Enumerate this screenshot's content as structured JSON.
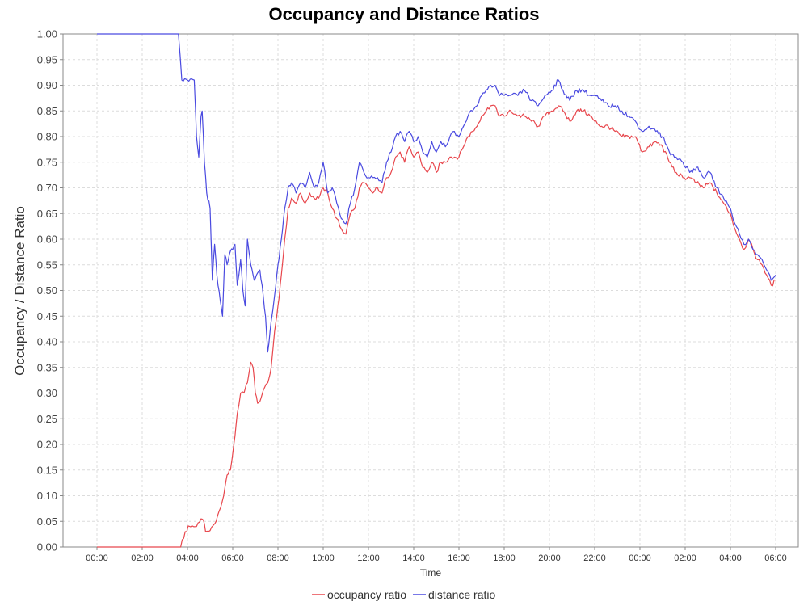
{
  "chart_data": {
    "type": "line",
    "title": "Occupancy and Distance Ratios",
    "xlabel": "Time",
    "ylabel": "Occupancy / Distance Ratio",
    "ylim": [
      0,
      1
    ],
    "y_ticks": [
      "0.00",
      "0.05",
      "0.10",
      "0.15",
      "0.20",
      "0.25",
      "0.30",
      "0.35",
      "0.40",
      "0.45",
      "0.50",
      "0.55",
      "0.60",
      "0.65",
      "0.70",
      "0.75",
      "0.80",
      "0.85",
      "0.90",
      "0.95",
      "1.00"
    ],
    "x_unit": "hours elapsed since the first 00:00 tick",
    "xlim": [
      -1.5,
      31.0
    ],
    "x_ticks": [
      {
        "x": 0,
        "label": "00:00"
      },
      {
        "x": 2,
        "label": "02:00"
      },
      {
        "x": 4,
        "label": "04:00"
      },
      {
        "x": 6,
        "label": "06:00"
      },
      {
        "x": 8,
        "label": "08:00"
      },
      {
        "x": 10,
        "label": "10:00"
      },
      {
        "x": 12,
        "label": "12:00"
      },
      {
        "x": 14,
        "label": "14:00"
      },
      {
        "x": 16,
        "label": "16:00"
      },
      {
        "x": 18,
        "label": "18:00"
      },
      {
        "x": 20,
        "label": "20:00"
      },
      {
        "x": 22,
        "label": "22:00"
      },
      {
        "x": 24,
        "label": "00:00"
      },
      {
        "x": 26,
        "label": "02:00"
      },
      {
        "x": 28,
        "label": "04:00"
      },
      {
        "x": 30,
        "label": "06:00"
      }
    ],
    "grid": true,
    "legend_position": "bottom-center",
    "series": [
      {
        "name": "occupancy ratio",
        "color": "#e8474d",
        "points": [
          [
            0,
            0
          ],
          [
            3.7,
            0
          ],
          [
            3.9,
            0.03
          ],
          [
            4.1,
            0.04
          ],
          [
            4.4,
            0.04
          ],
          [
            4.6,
            0.055
          ],
          [
            4.75,
            0.045
          ],
          [
            4.8,
            0.03
          ],
          [
            5.0,
            0.032
          ],
          [
            5.2,
            0.045
          ],
          [
            5.4,
            0.07
          ],
          [
            5.6,
            0.1
          ],
          [
            5.75,
            0.14
          ],
          [
            5.9,
            0.15
          ],
          [
            6.05,
            0.2
          ],
          [
            6.2,
            0.26
          ],
          [
            6.35,
            0.3
          ],
          [
            6.5,
            0.3
          ],
          [
            6.65,
            0.32
          ],
          [
            6.8,
            0.36
          ],
          [
            6.9,
            0.35
          ],
          [
            7.0,
            0.3
          ],
          [
            7.1,
            0.28
          ],
          [
            7.25,
            0.29
          ],
          [
            7.4,
            0.31
          ],
          [
            7.55,
            0.32
          ],
          [
            7.7,
            0.35
          ],
          [
            7.85,
            0.42
          ],
          [
            8.0,
            0.47
          ],
          [
            8.15,
            0.53
          ],
          [
            8.3,
            0.6
          ],
          [
            8.45,
            0.66
          ],
          [
            8.6,
            0.68
          ],
          [
            8.8,
            0.67
          ],
          [
            9.0,
            0.69
          ],
          [
            9.2,
            0.67
          ],
          [
            9.4,
            0.69
          ],
          [
            9.6,
            0.68
          ],
          [
            9.8,
            0.68
          ],
          [
            10.0,
            0.7
          ],
          [
            10.2,
            0.69
          ],
          [
            10.4,
            0.66
          ],
          [
            10.6,
            0.64
          ],
          [
            10.8,
            0.62
          ],
          [
            11.0,
            0.61
          ],
          [
            11.2,
            0.65
          ],
          [
            11.4,
            0.66
          ],
          [
            11.6,
            0.7
          ],
          [
            11.8,
            0.71
          ],
          [
            12.0,
            0.7
          ],
          [
            12.2,
            0.69
          ],
          [
            12.4,
            0.7
          ],
          [
            12.6,
            0.69
          ],
          [
            12.8,
            0.72
          ],
          [
            13.0,
            0.73
          ],
          [
            13.2,
            0.76
          ],
          [
            13.4,
            0.77
          ],
          [
            13.6,
            0.75
          ],
          [
            13.8,
            0.78
          ],
          [
            14.0,
            0.76
          ],
          [
            14.2,
            0.77
          ],
          [
            14.4,
            0.74
          ],
          [
            14.6,
            0.73
          ],
          [
            14.8,
            0.75
          ],
          [
            15.0,
            0.73
          ],
          [
            15.2,
            0.75
          ],
          [
            15.4,
            0.75
          ],
          [
            15.6,
            0.76
          ],
          [
            15.8,
            0.76
          ],
          [
            16.0,
            0.76
          ],
          [
            16.2,
            0.78
          ],
          [
            16.4,
            0.8
          ],
          [
            16.6,
            0.81
          ],
          [
            16.8,
            0.82
          ],
          [
            17.0,
            0.84
          ],
          [
            17.2,
            0.85
          ],
          [
            17.4,
            0.86
          ],
          [
            17.6,
            0.86
          ],
          [
            17.8,
            0.84
          ],
          [
            18.0,
            0.84
          ],
          [
            18.3,
            0.85
          ],
          [
            18.6,
            0.84
          ],
          [
            18.9,
            0.84
          ],
          [
            19.2,
            0.83
          ],
          [
            19.5,
            0.82
          ],
          [
            19.8,
            0.84
          ],
          [
            20.1,
            0.85
          ],
          [
            20.4,
            0.86
          ],
          [
            20.6,
            0.85
          ],
          [
            20.9,
            0.83
          ],
          [
            21.2,
            0.85
          ],
          [
            21.5,
            0.85
          ],
          [
            21.8,
            0.84
          ],
          [
            22.0,
            0.83
          ],
          [
            22.3,
            0.82
          ],
          [
            22.6,
            0.82
          ],
          [
            22.9,
            0.81
          ],
          [
            23.2,
            0.8
          ],
          [
            23.5,
            0.8
          ],
          [
            23.8,
            0.8
          ],
          [
            24.1,
            0.77
          ],
          [
            24.4,
            0.78
          ],
          [
            24.7,
            0.79
          ],
          [
            25.0,
            0.78
          ],
          [
            25.3,
            0.75
          ],
          [
            25.6,
            0.73
          ],
          [
            25.9,
            0.72
          ],
          [
            26.2,
            0.72
          ],
          [
            26.5,
            0.71
          ],
          [
            26.8,
            0.7
          ],
          [
            27.1,
            0.71
          ],
          [
            27.4,
            0.69
          ],
          [
            27.7,
            0.67
          ],
          [
            28.0,
            0.65
          ],
          [
            28.2,
            0.62
          ],
          [
            28.4,
            0.6
          ],
          [
            28.6,
            0.58
          ],
          [
            28.8,
            0.6
          ],
          [
            29.0,
            0.58
          ],
          [
            29.2,
            0.56
          ],
          [
            29.4,
            0.55
          ],
          [
            29.6,
            0.53
          ],
          [
            29.8,
            0.51
          ],
          [
            30.0,
            0.52
          ]
        ]
      },
      {
        "name": "distance ratio",
        "color": "#4a4ae0",
        "points": [
          [
            0,
            1.0
          ],
          [
            3.6,
            1.0
          ],
          [
            3.75,
            0.91
          ],
          [
            4.0,
            0.91
          ],
          [
            4.3,
            0.91
          ],
          [
            4.4,
            0.8
          ],
          [
            4.5,
            0.76
          ],
          [
            4.6,
            0.84
          ],
          [
            4.65,
            0.85
          ],
          [
            4.75,
            0.75
          ],
          [
            4.85,
            0.69
          ],
          [
            5.0,
            0.66
          ],
          [
            5.1,
            0.52
          ],
          [
            5.2,
            0.59
          ],
          [
            5.3,
            0.53
          ],
          [
            5.45,
            0.48
          ],
          [
            5.55,
            0.45
          ],
          [
            5.65,
            0.57
          ],
          [
            5.75,
            0.55
          ],
          [
            5.85,
            0.57
          ],
          [
            6.0,
            0.58
          ],
          [
            6.1,
            0.59
          ],
          [
            6.2,
            0.51
          ],
          [
            6.35,
            0.56
          ],
          [
            6.45,
            0.5
          ],
          [
            6.55,
            0.47
          ],
          [
            6.65,
            0.6
          ],
          [
            6.8,
            0.55
          ],
          [
            6.95,
            0.52
          ],
          [
            7.05,
            0.53
          ],
          [
            7.2,
            0.54
          ],
          [
            7.3,
            0.51
          ],
          [
            7.45,
            0.45
          ],
          [
            7.55,
            0.38
          ],
          [
            7.7,
            0.44
          ],
          [
            7.85,
            0.49
          ],
          [
            8.0,
            0.55
          ],
          [
            8.15,
            0.6
          ],
          [
            8.3,
            0.66
          ],
          [
            8.45,
            0.7
          ],
          [
            8.6,
            0.71
          ],
          [
            8.8,
            0.69
          ],
          [
            9.0,
            0.71
          ],
          [
            9.2,
            0.7
          ],
          [
            9.4,
            0.73
          ],
          [
            9.6,
            0.7
          ],
          [
            9.8,
            0.71
          ],
          [
            10.0,
            0.75
          ],
          [
            10.2,
            0.69
          ],
          [
            10.4,
            0.7
          ],
          [
            10.6,
            0.67
          ],
          [
            10.8,
            0.64
          ],
          [
            11.0,
            0.63
          ],
          [
            11.2,
            0.67
          ],
          [
            11.4,
            0.7
          ],
          [
            11.6,
            0.75
          ],
          [
            11.8,
            0.73
          ],
          [
            12.0,
            0.72
          ],
          [
            12.2,
            0.72
          ],
          [
            12.4,
            0.72
          ],
          [
            12.6,
            0.71
          ],
          [
            12.8,
            0.75
          ],
          [
            13.0,
            0.77
          ],
          [
            13.2,
            0.8
          ],
          [
            13.4,
            0.81
          ],
          [
            13.6,
            0.79
          ],
          [
            13.8,
            0.81
          ],
          [
            14.0,
            0.79
          ],
          [
            14.2,
            0.8
          ],
          [
            14.4,
            0.77
          ],
          [
            14.6,
            0.76
          ],
          [
            14.8,
            0.79
          ],
          [
            15.0,
            0.77
          ],
          [
            15.2,
            0.79
          ],
          [
            15.4,
            0.78
          ],
          [
            15.6,
            0.8
          ],
          [
            15.8,
            0.81
          ],
          [
            16.0,
            0.8
          ],
          [
            16.2,
            0.82
          ],
          [
            16.4,
            0.84
          ],
          [
            16.6,
            0.85
          ],
          [
            16.8,
            0.86
          ],
          [
            17.0,
            0.88
          ],
          [
            17.2,
            0.89
          ],
          [
            17.4,
            0.9
          ],
          [
            17.6,
            0.9
          ],
          [
            17.8,
            0.88
          ],
          [
            18.0,
            0.88
          ],
          [
            18.3,
            0.88
          ],
          [
            18.6,
            0.88
          ],
          [
            18.9,
            0.89
          ],
          [
            19.2,
            0.87
          ],
          [
            19.5,
            0.86
          ],
          [
            19.8,
            0.88
          ],
          [
            20.1,
            0.89
          ],
          [
            20.4,
            0.91
          ],
          [
            20.6,
            0.89
          ],
          [
            20.9,
            0.87
          ],
          [
            21.2,
            0.89
          ],
          [
            21.5,
            0.89
          ],
          [
            21.8,
            0.88
          ],
          [
            22.0,
            0.88
          ],
          [
            22.3,
            0.87
          ],
          [
            22.6,
            0.86
          ],
          [
            22.9,
            0.86
          ],
          [
            23.2,
            0.85
          ],
          [
            23.5,
            0.84
          ],
          [
            23.8,
            0.83
          ],
          [
            24.1,
            0.81
          ],
          [
            24.4,
            0.82
          ],
          [
            24.7,
            0.81
          ],
          [
            25.0,
            0.8
          ],
          [
            25.3,
            0.77
          ],
          [
            25.6,
            0.76
          ],
          [
            25.9,
            0.75
          ],
          [
            26.2,
            0.73
          ],
          [
            26.5,
            0.74
          ],
          [
            26.8,
            0.72
          ],
          [
            27.1,
            0.73
          ],
          [
            27.4,
            0.7
          ],
          [
            27.7,
            0.68
          ],
          [
            28.0,
            0.66
          ],
          [
            28.2,
            0.63
          ],
          [
            28.4,
            0.61
          ],
          [
            28.6,
            0.59
          ],
          [
            28.8,
            0.6
          ],
          [
            29.0,
            0.58
          ],
          [
            29.2,
            0.57
          ],
          [
            29.4,
            0.56
          ],
          [
            29.6,
            0.54
          ],
          [
            29.8,
            0.52
          ],
          [
            30.0,
            0.53
          ]
        ]
      }
    ]
  }
}
